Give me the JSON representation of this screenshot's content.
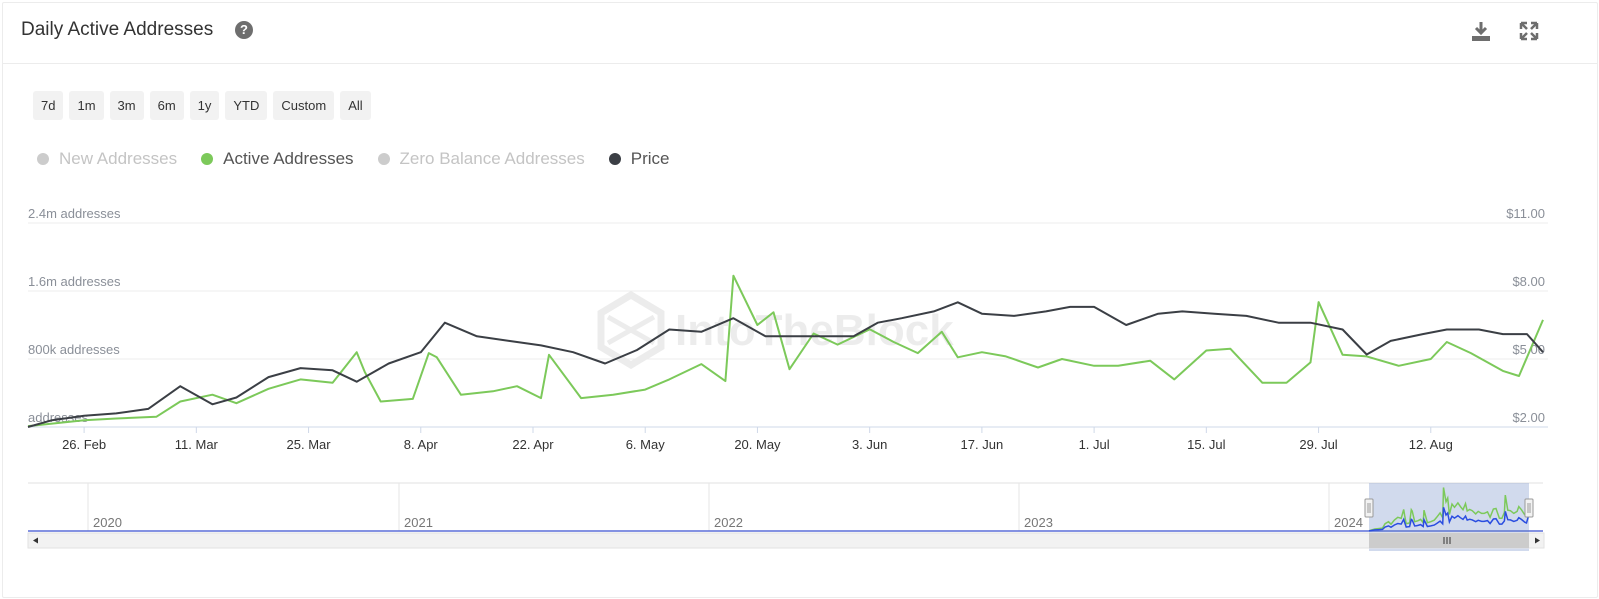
{
  "header": {
    "title": "Daily Active Addresses",
    "help_icon": "question-circle-icon",
    "download_icon": "download-icon",
    "fullscreen_icon": "expand-icon"
  },
  "range_buttons": [
    "7d",
    "1m",
    "3m",
    "6m",
    "1y",
    "YTD",
    "Custom",
    "All"
  ],
  "legend": [
    {
      "label": "New Addresses",
      "color": "#cccccc",
      "active": false
    },
    {
      "label": "Active Addresses",
      "color": "#7cc95a",
      "active": true
    },
    {
      "label": "Zero Balance Addresses",
      "color": "#cccccc",
      "active": false
    },
    {
      "label": "Price",
      "color": "#3b3f45",
      "active": true
    }
  ],
  "watermark": "IntoTheBlock",
  "chart_data": {
    "type": "line",
    "title": "Daily Active Addresses",
    "x_ticks": [
      "26. Feb",
      "11. Mar",
      "25. Mar",
      "8. Apr",
      "22. Apr",
      "6. May",
      "20. May",
      "3. Jun",
      "17. Jun",
      "1. Jul",
      "15. Jul",
      "29. Jul",
      "12. Aug"
    ],
    "y_left_ticks": [
      "addresses",
      "800k addresses",
      "1.6m addresses",
      "2.4m addresses"
    ],
    "y_left_range": [
      0,
      2400000
    ],
    "y_right_ticks": [
      "$2.00",
      "$5.00",
      "$8.00",
      "$11.00"
    ],
    "y_right_range": [
      2,
      11
    ],
    "x_range": [
      "2024-02-19",
      "2024-08-26"
    ],
    "series": [
      {
        "name": "Active Addresses",
        "color": "#7cc95a",
        "axis": "left",
        "x": [
          "2024-02-19",
          "2024-02-22",
          "2024-02-26",
          "2024-03-01",
          "2024-03-06",
          "2024-03-09",
          "2024-03-13",
          "2024-03-16",
          "2024-03-20",
          "2024-03-24",
          "2024-03-28",
          "2024-03-31",
          "2024-04-01",
          "2024-04-03",
          "2024-04-07",
          "2024-04-09",
          "2024-04-10",
          "2024-04-13",
          "2024-04-15",
          "2024-04-17",
          "2024-04-20",
          "2024-04-23",
          "2024-04-24",
          "2024-04-28",
          "2024-05-02",
          "2024-05-06",
          "2024-05-09",
          "2024-05-13",
          "2024-05-16",
          "2024-05-17",
          "2024-05-20",
          "2024-05-22",
          "2024-05-24",
          "2024-05-27",
          "2024-05-30",
          "2024-06-03",
          "2024-06-06",
          "2024-06-09",
          "2024-06-12",
          "2024-06-14",
          "2024-06-17",
          "2024-06-20",
          "2024-06-24",
          "2024-06-27",
          "2024-07-01",
          "2024-07-04",
          "2024-07-08",
          "2024-07-11",
          "2024-07-15",
          "2024-07-18",
          "2024-07-22",
          "2024-07-25",
          "2024-07-28",
          "2024-07-29",
          "2024-08-01",
          "2024-08-04",
          "2024-08-08",
          "2024-08-12",
          "2024-08-14",
          "2024-08-17",
          "2024-08-21",
          "2024-08-23",
          "2024-08-26"
        ],
        "values": [
          10000,
          40000,
          80000,
          100000,
          120000,
          300000,
          380000,
          280000,
          450000,
          560000,
          520000,
          880000,
          650000,
          300000,
          330000,
          870000,
          820000,
          380000,
          400000,
          420000,
          480000,
          340000,
          850000,
          340000,
          380000,
          440000,
          560000,
          740000,
          540000,
          1780000,
          1200000,
          1350000,
          680000,
          1100000,
          970000,
          1150000,
          1000000,
          870000,
          1120000,
          820000,
          880000,
          830000,
          700000,
          800000,
          720000,
          720000,
          780000,
          560000,
          900000,
          920000,
          520000,
          520000,
          760000,
          1470000,
          850000,
          830000,
          720000,
          800000,
          1000000,
          870000,
          660000,
          600000,
          1260000
        ]
      },
      {
        "name": "Price",
        "color": "#3b3f45",
        "axis": "right",
        "x": [
          "2024-02-19",
          "2024-02-22",
          "2024-02-26",
          "2024-03-01",
          "2024-03-05",
          "2024-03-09",
          "2024-03-13",
          "2024-03-16",
          "2024-03-20",
          "2024-03-24",
          "2024-03-28",
          "2024-03-31",
          "2024-04-04",
          "2024-04-08",
          "2024-04-11",
          "2024-04-15",
          "2024-04-19",
          "2024-04-23",
          "2024-04-27",
          "2024-05-01",
          "2024-05-05",
          "2024-05-09",
          "2024-05-13",
          "2024-05-17",
          "2024-05-21",
          "2024-05-24",
          "2024-05-28",
          "2024-06-01",
          "2024-06-04",
          "2024-06-07",
          "2024-06-11",
          "2024-06-14",
          "2024-06-17",
          "2024-06-21",
          "2024-06-25",
          "2024-06-28",
          "2024-07-01",
          "2024-07-05",
          "2024-07-09",
          "2024-07-12",
          "2024-07-16",
          "2024-07-20",
          "2024-07-24",
          "2024-07-28",
          "2024-08-01",
          "2024-08-04",
          "2024-08-07",
          "2024-08-11",
          "2024-08-14",
          "2024-08-18",
          "2024-08-21",
          "2024-08-24",
          "2024-08-26"
        ],
        "values": [
          2.0,
          2.3,
          2.5,
          2.6,
          2.8,
          3.8,
          3.0,
          3.3,
          4.2,
          4.6,
          4.5,
          4.0,
          4.8,
          5.3,
          6.6,
          6.0,
          5.8,
          5.6,
          5.3,
          4.8,
          5.4,
          6.3,
          6.2,
          6.8,
          6.0,
          6.0,
          6.0,
          6.0,
          6.6,
          6.8,
          7.1,
          7.5,
          7.0,
          6.9,
          7.1,
          7.3,
          7.3,
          6.5,
          7.0,
          7.1,
          7.0,
          6.9,
          6.6,
          6.6,
          6.3,
          5.2,
          5.8,
          6.1,
          6.3,
          6.3,
          6.1,
          6.1,
          5.3
        ]
      }
    ],
    "navigator": {
      "years": [
        "2020",
        "2021",
        "2022",
        "2023",
        "2024"
      ]
    }
  }
}
